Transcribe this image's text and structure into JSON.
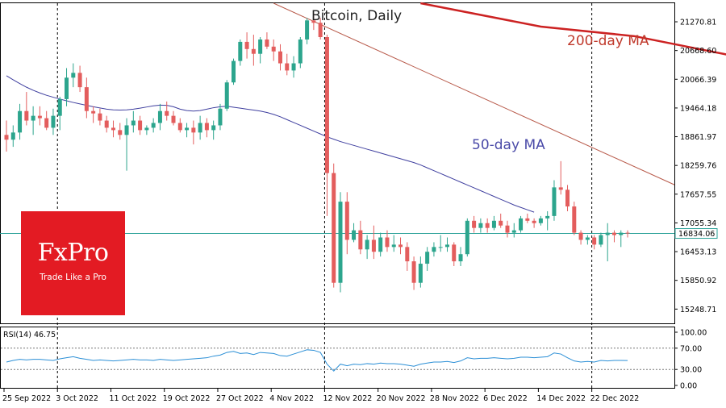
{
  "chart_data": [
    {
      "type": "candlestick",
      "title": "Bitcoin, Daily",
      "ylim": [
        14950,
        21660
      ],
      "grid": false,
      "colors": {
        "up": "#2ca58d",
        "down": "#e35d5d",
        "ma50": "#3f3f9f",
        "ma200": "#cc2222",
        "trend": "#b85a4a",
        "current": "#2aa198"
      },
      "price_ticks": [
        "21270.81",
        "20668.60",
        "20066.39",
        "19464.18",
        "18861.97",
        "18259.76",
        "17657.55",
        "17055.34",
        "16453.13",
        "15850.92",
        "15248.71"
      ],
      "current_price": 16834.06,
      "current_price_label": "16834.06",
      "x_labels": [
        "25 Sep 2022",
        "3 Oct 2022",
        "11 Oct 2022",
        "19 Oct 2022",
        "27 Oct 2022",
        "4 Nov 2022",
        "12 Nov 2022",
        "20 Nov 2022",
        "28 Nov 2022",
        "6 Dec 2022",
        "14 Dec 2022",
        "22 Dec 2022"
      ],
      "candles_ohlc": [
        [
          18900,
          19200,
          18550,
          18800
        ],
        [
          18800,
          19100,
          18650,
          18950
        ],
        [
          18950,
          19550,
          18800,
          19400
        ],
        [
          19400,
          19800,
          19100,
          19200
        ],
        [
          19200,
          19500,
          18900,
          19300
        ],
        [
          19300,
          19500,
          19100,
          19250
        ],
        [
          19250,
          19400,
          19000,
          19050
        ],
        [
          19050,
          19450,
          18900,
          19300
        ],
        [
          19300,
          19700,
          19000,
          19650
        ],
        [
          19650,
          20300,
          19500,
          20100
        ],
        [
          20100,
          20400,
          19900,
          20200
        ],
        [
          20200,
          20350,
          19800,
          19900
        ],
        [
          19900,
          20100,
          19250,
          19400
        ],
        [
          19400,
          19500,
          19150,
          19350
        ],
        [
          19350,
          19450,
          19100,
          19200
        ],
        [
          19200,
          19300,
          18950,
          19050
        ],
        [
          19050,
          19200,
          18850,
          19000
        ],
        [
          19000,
          19150,
          18800,
          18900
        ],
        [
          18900,
          19250,
          18150,
          19100
        ],
        [
          19100,
          19400,
          18950,
          19200
        ],
        [
          19200,
          19300,
          18900,
          19000
        ],
        [
          19000,
          19100,
          18900,
          19050
        ],
        [
          19050,
          19250,
          18950,
          19150
        ],
        [
          19150,
          19550,
          19000,
          19400
        ],
        [
          19400,
          19600,
          19200,
          19300
        ],
        [
          19300,
          19400,
          19100,
          19150
        ],
        [
          19150,
          19250,
          18950,
          19000
        ],
        [
          19000,
          19150,
          18850,
          19050
        ],
        [
          19050,
          19200,
          18700,
          18950
        ],
        [
          18950,
          19300,
          18800,
          19150
        ],
        [
          19150,
          19250,
          18850,
          19000
        ],
        [
          19000,
          19200,
          18800,
          19100
        ],
        [
          19100,
          19550,
          19000,
          19450
        ],
        [
          19450,
          20050,
          19400,
          20000
        ],
        [
          20000,
          20500,
          19950,
          20450
        ],
        [
          20450,
          20900,
          20350,
          20850
        ],
        [
          20850,
          21050,
          20500,
          20700
        ],
        [
          20700,
          21000,
          20350,
          20600
        ],
        [
          20600,
          20950,
          20400,
          20900
        ],
        [
          20900,
          21050,
          20700,
          20750
        ],
        [
          20750,
          20900,
          20450,
          20650
        ],
        [
          20650,
          20800,
          20250,
          20400
        ],
        [
          20400,
          20600,
          20150,
          20250
        ],
        [
          20250,
          20550,
          20100,
          20400
        ],
        [
          20400,
          20950,
          20300,
          20900
        ],
        [
          20900,
          21350,
          20800,
          21300
        ],
        [
          21300,
          21450,
          21100,
          21250
        ],
        [
          21250,
          21350,
          20900,
          20950
        ],
        [
          20950,
          21000,
          17200,
          18100
        ],
        [
          18100,
          18300,
          15700,
          15800
        ],
        [
          15800,
          17700,
          15600,
          17500
        ],
        [
          17500,
          17700,
          16400,
          16700
        ],
        [
          16700,
          17050,
          16650,
          16900
        ],
        [
          16900,
          17100,
          16400,
          16500
        ],
        [
          16500,
          16800,
          16300,
          16700
        ],
        [
          16700,
          17000,
          16300,
          16450
        ],
        [
          16450,
          16850,
          16350,
          16750
        ],
        [
          16750,
          16900,
          16450,
          16550
        ],
        [
          16550,
          16800,
          16450,
          16600
        ],
        [
          16600,
          16750,
          16400,
          16550
        ],
        [
          16550,
          16650,
          16050,
          16250
        ],
        [
          16250,
          16350,
          15650,
          15800
        ],
        [
          15800,
          16350,
          15700,
          16200
        ],
        [
          16200,
          16550,
          16050,
          16450
        ],
        [
          16450,
          16650,
          16350,
          16550
        ],
        [
          16550,
          16800,
          16450,
          16550
        ],
        [
          16550,
          16750,
          16450,
          16600
        ],
        [
          16600,
          16650,
          16150,
          16250
        ],
        [
          16250,
          16550,
          16150,
          16400
        ],
        [
          16400,
          17150,
          16350,
          17100
        ],
        [
          17100,
          17200,
          16850,
          16950
        ],
        [
          16950,
          17150,
          16850,
          17050
        ],
        [
          17050,
          17150,
          16850,
          16950
        ],
        [
          16950,
          17200,
          16900,
          17100
        ],
        [
          17100,
          17250,
          16950,
          17000
        ],
        [
          17000,
          17100,
          16750,
          16850
        ],
        [
          16850,
          17050,
          16750,
          16900
        ],
        [
          16900,
          17200,
          16850,
          17150
        ],
        [
          17150,
          17250,
          17050,
          17100
        ],
        [
          17100,
          17150,
          16950,
          17050
        ],
        [
          17050,
          17200,
          17000,
          17150
        ],
        [
          17150,
          17300,
          16900,
          17200
        ],
        [
          17200,
          17950,
          17100,
          17800
        ],
        [
          17800,
          18350,
          17650,
          17750
        ],
        [
          17750,
          17850,
          17300,
          17400
        ],
        [
          17400,
          17500,
          16800,
          16850
        ],
        [
          16850,
          16900,
          16600,
          16700
        ],
        [
          16700,
          16800,
          16600,
          16750
        ],
        [
          16750,
          16800,
          16500,
          16600
        ],
        [
          16600,
          16850,
          16550,
          16800
        ],
        [
          16800,
          17050,
          16250,
          16850
        ],
        [
          16850,
          16900,
          16650,
          16800
        ],
        [
          16800,
          16900,
          16550,
          16850
        ],
        [
          16850,
          16900,
          16750,
          16834
        ]
      ],
      "ma50": [
        20140,
        20055,
        19975,
        19900,
        19835,
        19780,
        19730,
        19690,
        19650,
        19615,
        19580,
        19550,
        19520,
        19490,
        19465,
        19440,
        19425,
        19420,
        19425,
        19440,
        19460,
        19485,
        19510,
        19525,
        19520,
        19490,
        19440,
        19410,
        19400,
        19410,
        19440,
        19470,
        19490,
        19500,
        19480,
        19460,
        19440,
        19420,
        19400,
        19370,
        19330,
        19280,
        19220,
        19160,
        19100,
        19040,
        18980,
        18920,
        18860,
        18810,
        18760,
        18720,
        18680,
        18640,
        18600,
        18560,
        18520,
        18480,
        18440,
        18400,
        18360,
        18320,
        18270,
        18210,
        18150,
        18090,
        18030,
        17970,
        17910,
        17850,
        17790,
        17730,
        17670,
        17610,
        17550,
        17490,
        17430,
        17380,
        17330,
        17280
      ],
      "ma50_start_index": 0,
      "ma50_label": "50-day MA",
      "ma200": [
        [
          62,
          21660
        ],
        [
          80,
          21170
        ],
        [
          94,
          20970
        ],
        [
          108,
          20580
        ],
        [
          113,
          20540
        ],
        [
          120,
          20190
        ]
      ],
      "ma200_label": "200-day MA",
      "trend_line": [
        [
          40,
          21660
        ],
        [
          125,
          18700
        ]
      ],
      "vertical_markers_index": [
        8,
        48,
        88
      ]
    },
    {
      "type": "line",
      "title": "RSI(14) 46.75",
      "ylim": [
        0,
        100
      ],
      "ticks": [
        "100.00",
        "70.00",
        "30.00",
        "0.00"
      ],
      "levels": [
        70,
        30
      ],
      "values": [
        44,
        47,
        49,
        48,
        49,
        49,
        48,
        47,
        50,
        52,
        54,
        51,
        49,
        47,
        48,
        47,
        46,
        47,
        48,
        49,
        48,
        48,
        47,
        49,
        48,
        47,
        48,
        49,
        50,
        51,
        52,
        55,
        57,
        62,
        64,
        60,
        61,
        58,
        62,
        61,
        60,
        56,
        55,
        59,
        63,
        67,
        66,
        62,
        40,
        27,
        40,
        37,
        40,
        39,
        41,
        40,
        42,
        41,
        41,
        40,
        38,
        36,
        40,
        42,
        44,
        44,
        45,
        43,
        46,
        52,
        50,
        51,
        51,
        52,
        51,
        50,
        51,
        53,
        53,
        52,
        53,
        54,
        61,
        59,
        52,
        46,
        44,
        45,
        44,
        47,
        46,
        47,
        47,
        46.75
      ]
    }
  ]
}
